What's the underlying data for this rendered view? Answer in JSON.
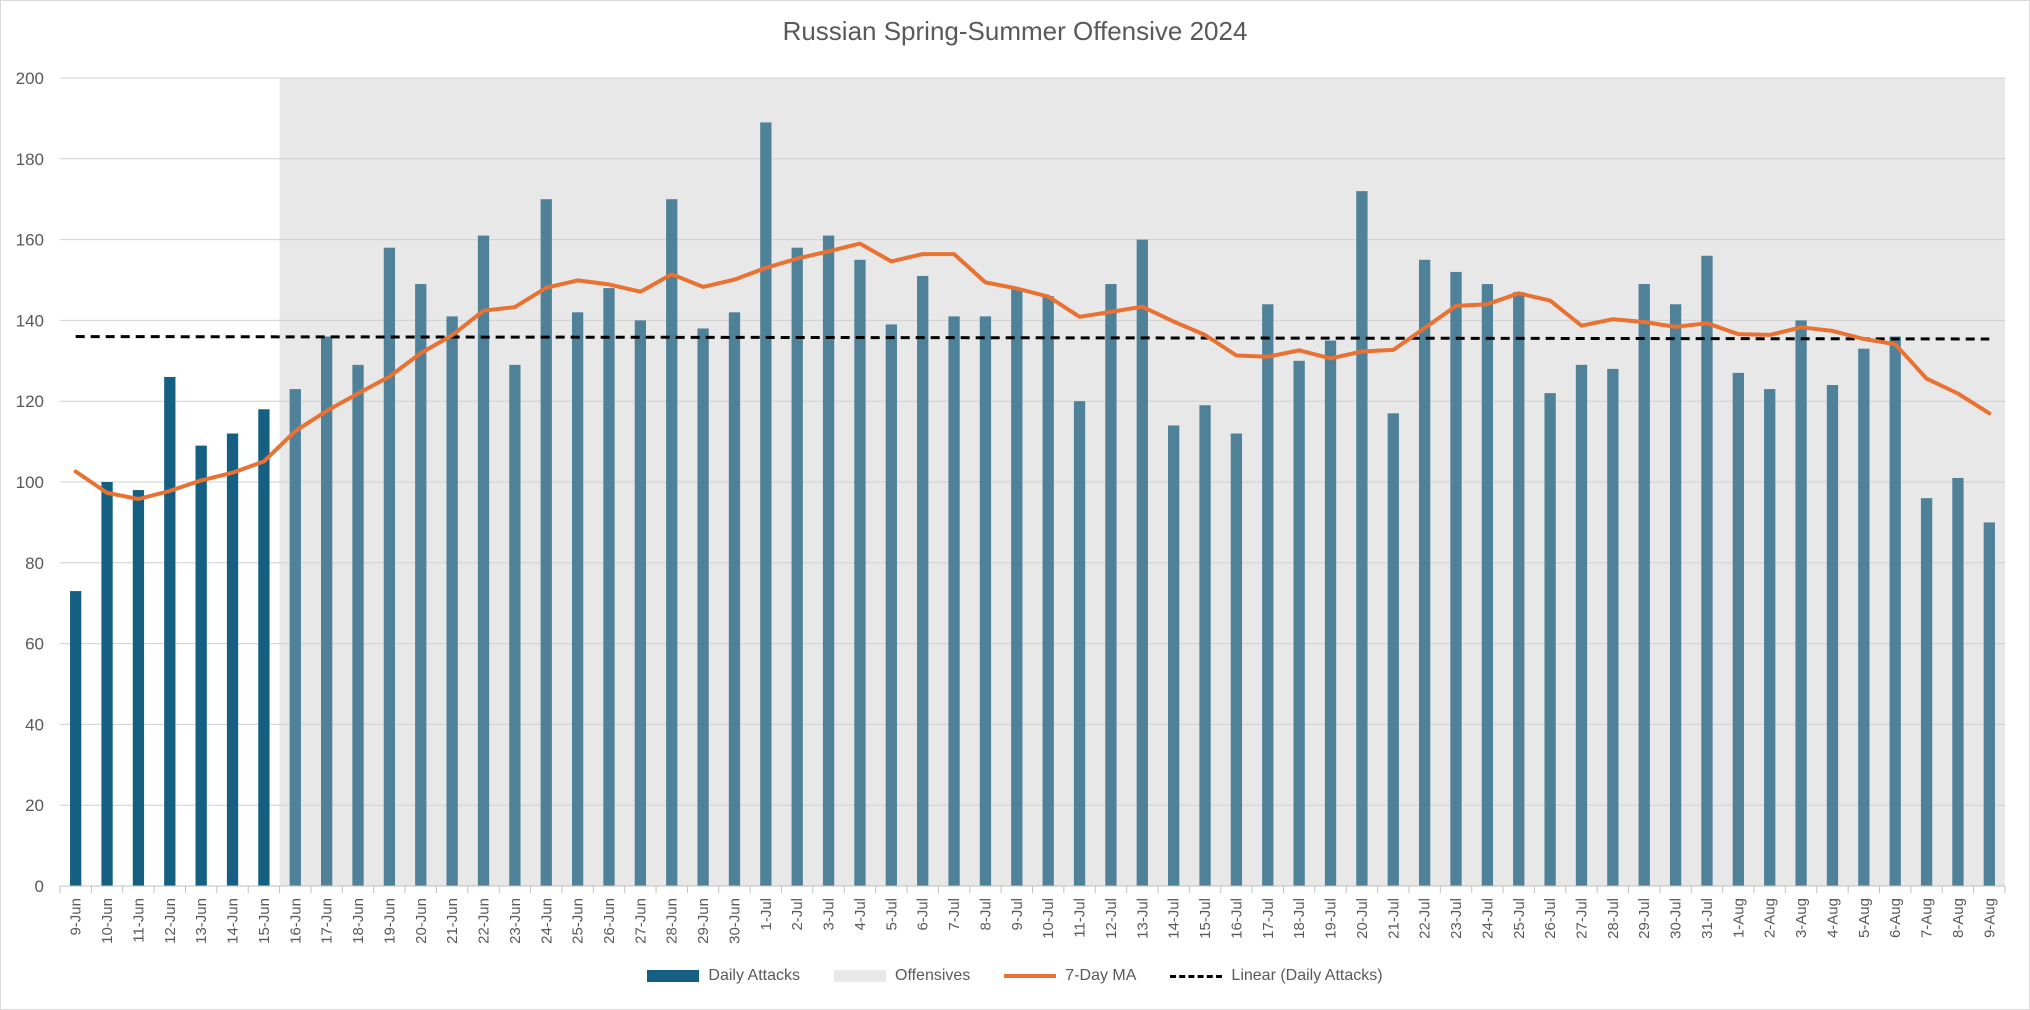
{
  "chart_data": {
    "type": "bar",
    "title": "Russian Spring-Summer Offensive 2024",
    "xlabel": "",
    "ylabel": "",
    "ylim": [
      0,
      200
    ],
    "yticks": [
      0,
      20,
      40,
      60,
      80,
      100,
      120,
      140,
      160,
      180,
      200
    ],
    "grid": true,
    "legend_position": "bottom",
    "categories": [
      "9-Jun",
      "10-Jun",
      "11-Jun",
      "12-Jun",
      "13-Jun",
      "14-Jun",
      "15-Jun",
      "16-Jun",
      "17-Jun",
      "18-Jun",
      "19-Jun",
      "20-Jun",
      "21-Jun",
      "22-Jun",
      "23-Jun",
      "24-Jun",
      "25-Jun",
      "26-Jun",
      "27-Jun",
      "28-Jun",
      "29-Jun",
      "30-Jun",
      "1-Jul",
      "2-Jul",
      "3-Jul",
      "4-Jul",
      "5-Jul",
      "6-Jul",
      "7-Jul",
      "8-Jul",
      "9-Jul",
      "10-Jul",
      "11-Jul",
      "12-Jul",
      "13-Jul",
      "14-Jul",
      "15-Jul",
      "16-Jul",
      "17-Jul",
      "18-Jul",
      "19-Jul",
      "20-Jul",
      "21-Jul",
      "22-Jul",
      "23-Jul",
      "24-Jul",
      "25-Jul",
      "26-Jul",
      "27-Jul",
      "28-Jul",
      "29-Jul",
      "30-Jul",
      "31-Jul",
      "1-Aug",
      "2-Aug",
      "3-Aug",
      "4-Aug",
      "5-Aug",
      "6-Aug",
      "7-Aug",
      "8-Aug",
      "9-Aug"
    ],
    "series": [
      {
        "name": "Daily Attacks",
        "type": "bar",
        "color": "#156082",
        "color_in_offensive": "#4f8199",
        "values": [
          73,
          100,
          98,
          126,
          109,
          112,
          118,
          123,
          136,
          129,
          158,
          149,
          141,
          161,
          129,
          170,
          142,
          148,
          140,
          170,
          138,
          142,
          189,
          158,
          161,
          155,
          139,
          151,
          141,
          141,
          148,
          146,
          120,
          149,
          160,
          114,
          119,
          112,
          144,
          130,
          135,
          172,
          117,
          155,
          152,
          149,
          147,
          122,
          129,
          128,
          149,
          144,
          156,
          127,
          123,
          140,
          124,
          133,
          136,
          96,
          101,
          90
        ]
      },
      {
        "name": "Offensives",
        "type": "area",
        "color": "#e8e8e8",
        "start": "16-Jun",
        "end": "9-Aug",
        "value": 200
      },
      {
        "name": "7-Day MA",
        "type": "line",
        "color": "#e97132",
        "values": [
          102.6,
          97.3,
          95.8,
          97.8,
          100.4,
          102.3,
          105.1,
          112.6,
          117.6,
          121.9,
          126.1,
          131.9,
          136.3,
          142.4,
          143.3,
          148.1,
          149.9,
          148.9,
          147.1,
          151.4,
          148.3,
          150.1,
          153.0,
          155.3,
          157.1,
          159.0,
          154.6,
          156.4,
          156.4,
          149.4,
          147.9,
          145.9,
          140.9,
          142.1,
          143.4,
          139.7,
          136.4,
          131.3,
          131.0,
          132.6,
          130.6,
          132.3,
          132.7,
          138.1,
          143.6,
          144.0,
          146.7,
          144.9,
          138.7,
          140.3,
          139.6,
          138.4,
          139.3,
          136.6,
          136.4,
          138.3,
          137.4,
          135.4,
          134.1,
          125.6,
          121.9,
          117.0
        ]
      },
      {
        "name": "Linear (Daily Attacks)",
        "type": "trendline",
        "color": "#000000",
        "start_value": 136.0,
        "end_value": 135.4
      }
    ]
  },
  "legend": {
    "daily_attacks": "Daily Attacks",
    "offensives": "Offensives",
    "ma": "7-Day MA",
    "linear": "Linear (Daily Attacks)"
  }
}
